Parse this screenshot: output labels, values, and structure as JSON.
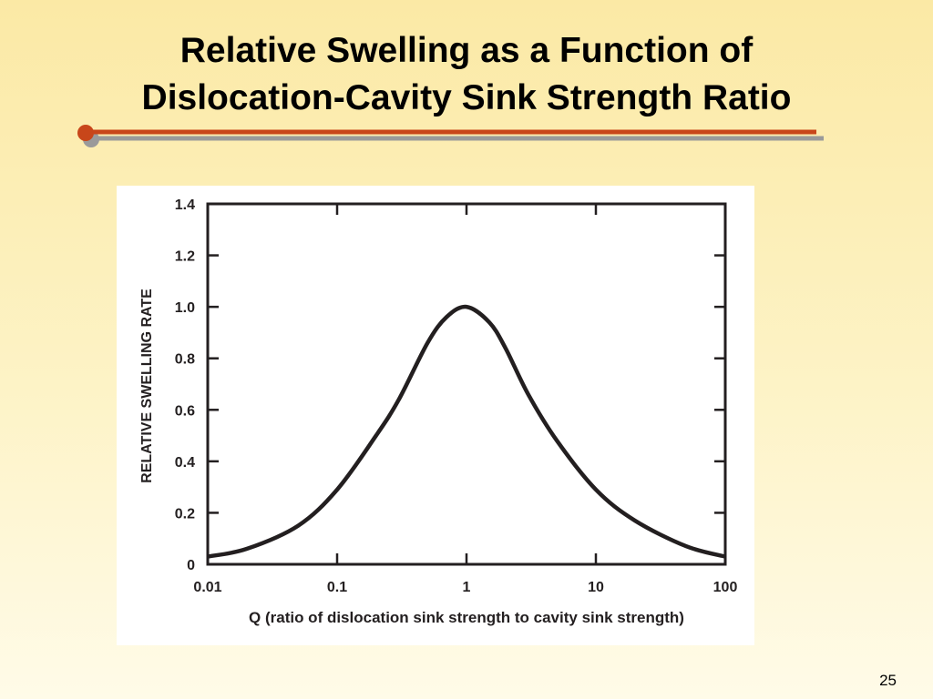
{
  "slide": {
    "title_line1": "Relative Swelling as a Function of",
    "title_line2": "Dislocation-Cavity Sink Strength Ratio",
    "page_number": "25",
    "accent_colors": {
      "rule": "#c8461a",
      "rule_shadow": "#9a9a9a",
      "dot": "#c8461a"
    }
  },
  "chart_data": {
    "type": "line",
    "title": "",
    "xlabel": "Q (ratio of dislocation sink strength to cavity sink strength)",
    "ylabel": "RELATIVE SWELLING RATE",
    "x_scale": "log",
    "xlim": [
      0.01,
      100
    ],
    "ylim": [
      0,
      1.4
    ],
    "x_ticks": [
      0.01,
      0.1,
      1,
      10,
      100
    ],
    "x_tick_labels": [
      "0.01",
      "0.1",
      "1",
      "10",
      "100"
    ],
    "y_ticks": [
      0,
      0.2,
      0.4,
      0.6,
      0.8,
      1.0,
      1.2,
      1.4
    ],
    "y_tick_labels": [
      "0",
      "0.2",
      "0.4",
      "0.6",
      "0.8",
      "1.0",
      "1.2",
      "1.4"
    ],
    "grid": false,
    "series": [
      {
        "color": "#231f20",
        "x": [
          0.01,
          0.02,
          0.05,
          0.1,
          0.2,
          0.3,
          0.5,
          0.7,
          1,
          1.5,
          2,
          3,
          5,
          10,
          20,
          50,
          100
        ],
        "y": [
          0.03,
          0.06,
          0.15,
          0.29,
          0.5,
          0.64,
          0.86,
          0.96,
          1.0,
          0.94,
          0.84,
          0.66,
          0.48,
          0.29,
          0.17,
          0.07,
          0.03
        ]
      }
    ]
  }
}
